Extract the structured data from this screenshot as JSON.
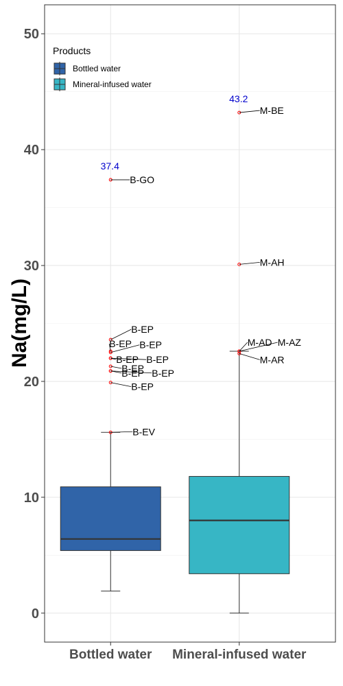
{
  "chart_data": {
    "type": "boxplot",
    "ylabel": "Na(mg/L)",
    "ylim": [
      -2.5,
      52.5
    ],
    "yticks": [
      0,
      10,
      20,
      30,
      40,
      50
    ],
    "grid": true,
    "legend": {
      "title": "Products",
      "placement": "top-left",
      "entries": [
        {
          "label": "Bottled water",
          "color": "#3064a8"
        },
        {
          "label": "Mineral-infused water",
          "color": "#37b6c5"
        }
      ]
    },
    "categories": [
      "Bottled water",
      "Mineral-infused water"
    ],
    "boxes": [
      {
        "category": "Bottled water",
        "color": "#3064a8",
        "whisker_low": 1.9,
        "q1": 5.4,
        "median": 6.4,
        "q3": 10.9,
        "whisker_high": 15.6,
        "max_label": "37.4",
        "max_value": 37.4,
        "outliers": [
          {
            "value": 37.4,
            "label": "B-GO"
          },
          {
            "value": 23.6,
            "label": "B-EP"
          },
          {
            "value": 22.6,
            "label": "B-EP"
          },
          {
            "value": 22.5,
            "label": "B-EP"
          },
          {
            "value": 22.0,
            "label": "B-EP"
          },
          {
            "value": 22.0,
            "label": "B-EP"
          },
          {
            "value": 21.3,
            "label": "B-EP"
          },
          {
            "value": 20.9,
            "label": "B-EP"
          },
          {
            "value": 20.9,
            "label": "B-EP"
          },
          {
            "value": 19.9,
            "label": "B-EP"
          },
          {
            "value": 15.6,
            "label": "B-EV"
          }
        ]
      },
      {
        "category": "Mineral-infused water",
        "color": "#37b6c5",
        "whisker_low": 0.0,
        "q1": 3.4,
        "median": 8.0,
        "q3": 11.8,
        "whisker_high": 22.6,
        "max_label": "43.2",
        "max_value": 43.2,
        "outliers": [
          {
            "value": 43.2,
            "label": "M-BE"
          },
          {
            "value": 30.1,
            "label": "M-AH"
          },
          {
            "value": 22.6,
            "label": "M-AD"
          },
          {
            "value": 22.6,
            "label": "M-AZ"
          },
          {
            "value": 22.4,
            "label": "M-AR"
          }
        ]
      }
    ]
  }
}
